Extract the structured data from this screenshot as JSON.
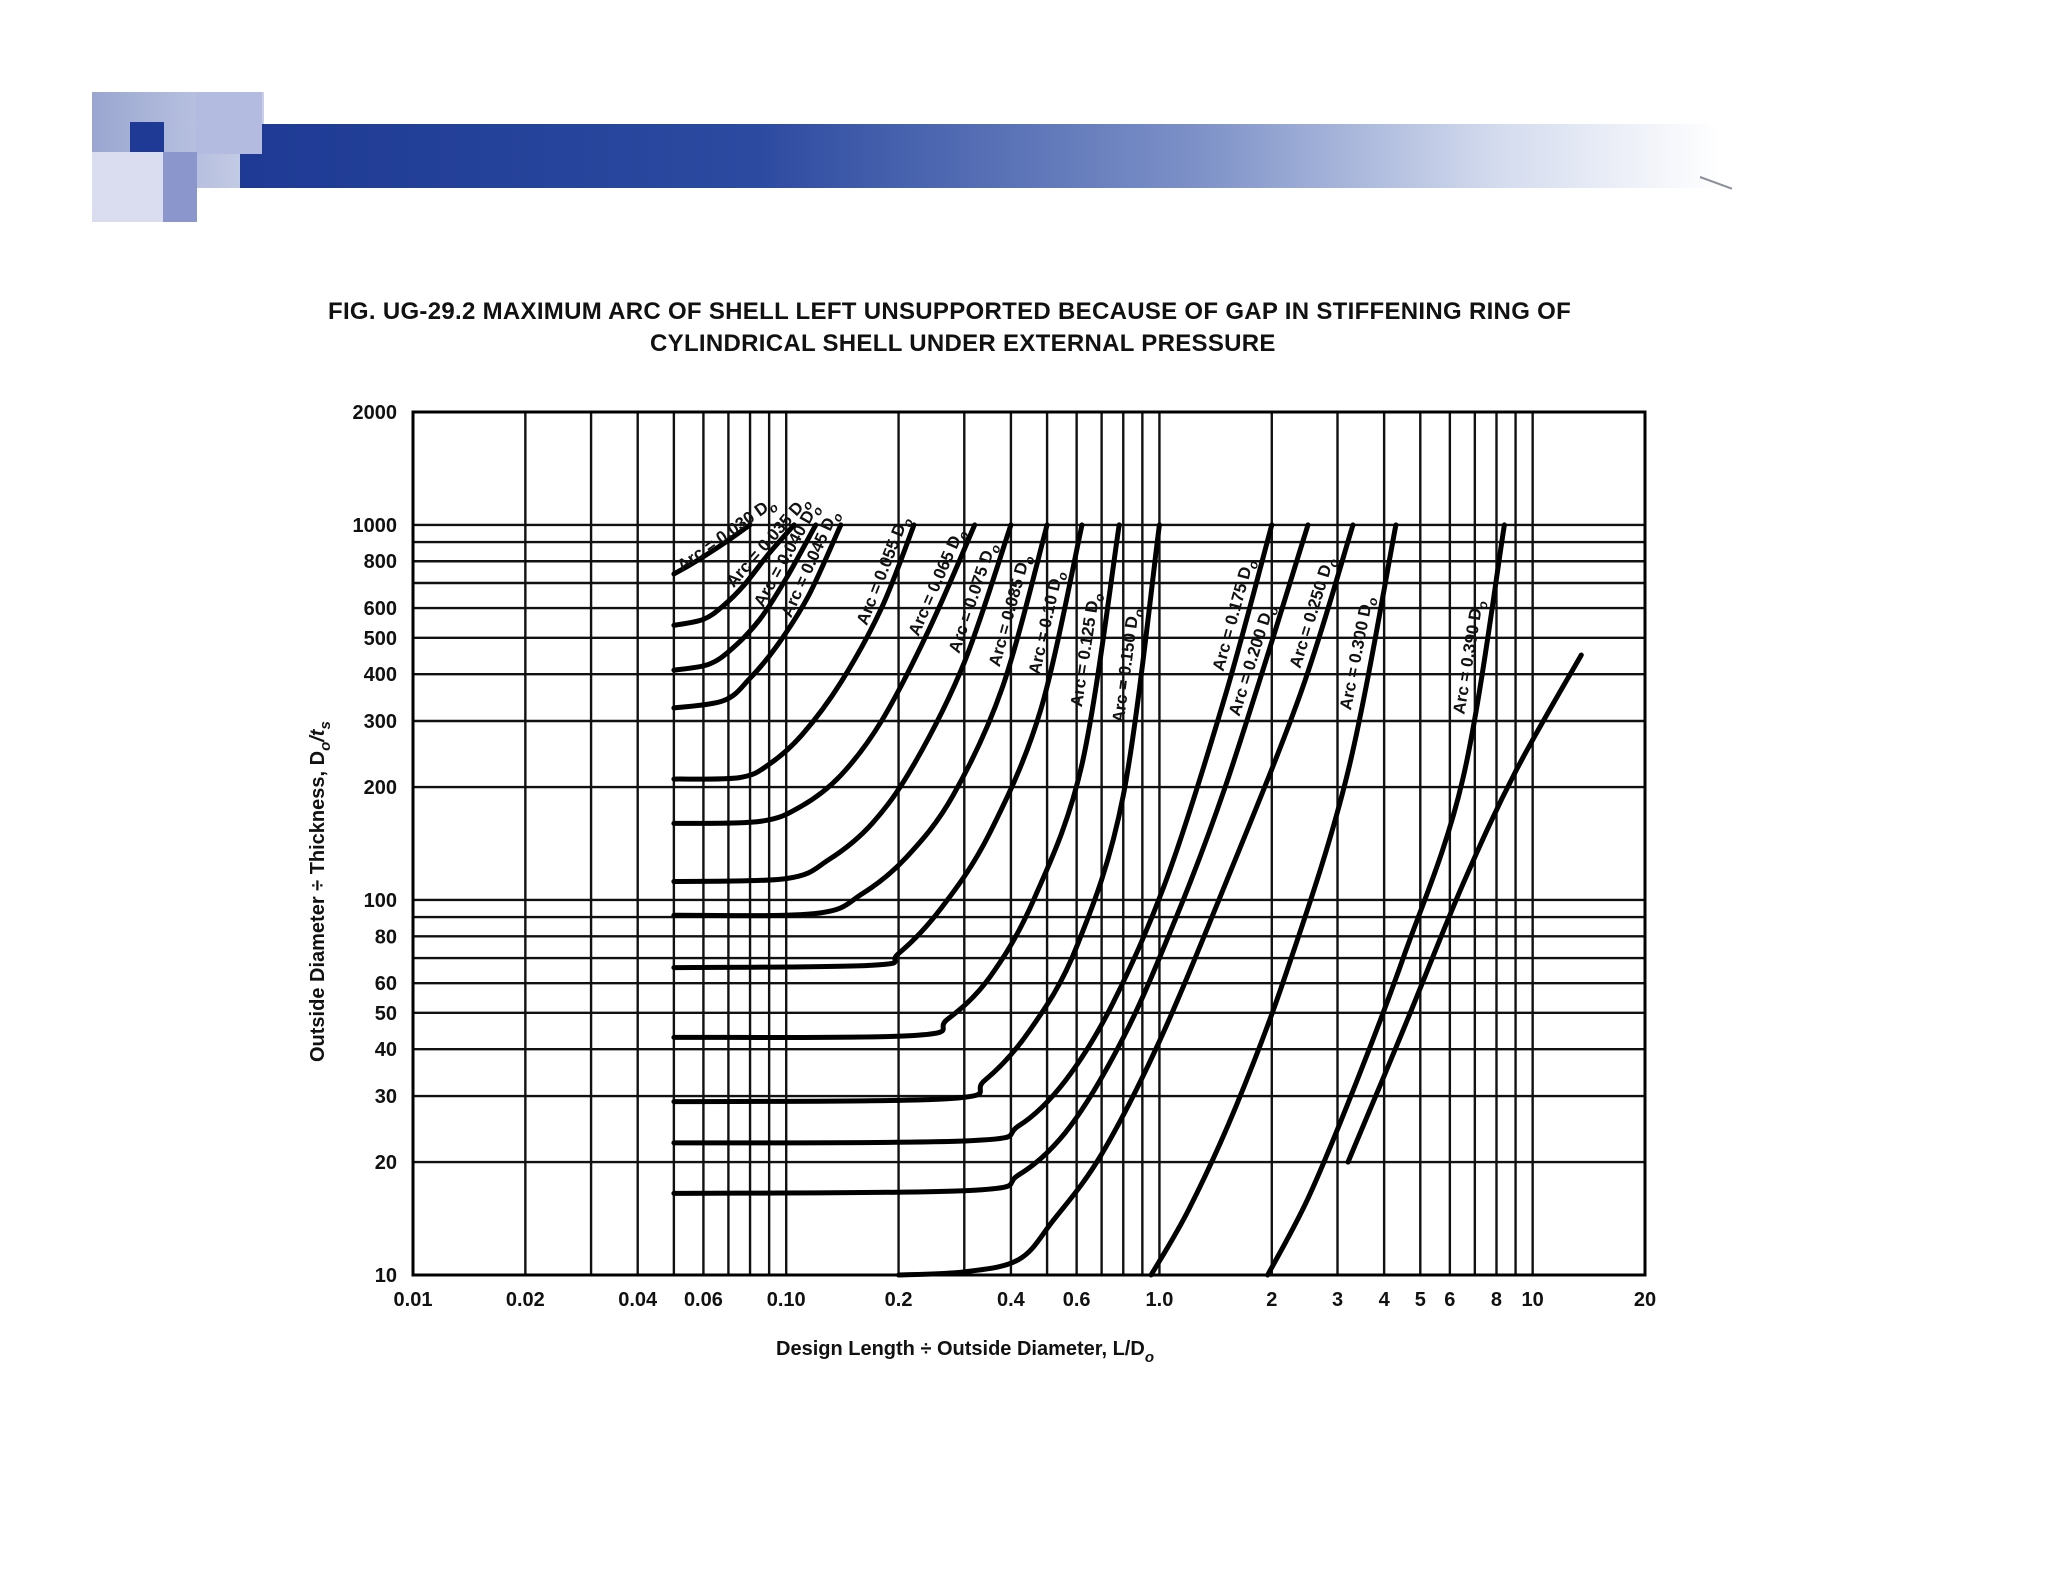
{
  "slide": {
    "figure_title_line1": "FIG. UG-29.2   MAXIMUM ARC OF SHELL LEFT UNSUPPORTED BECAUSE OF GAP IN STIFFENING RING OF",
    "figure_title_line2": "CYLINDRICAL SHELL UNDER EXTERNAL PRESSURE"
  },
  "colors": {
    "banner_dark": "#1e3a94",
    "banner_mid": "#7e92c8",
    "grid_line": "#111111",
    "curve": "#000000",
    "background": "#ffffff"
  },
  "chart_data": {
    "type": "line",
    "title": "FIG. UG-29.2   MAXIMUM ARC OF SHELL LEFT UNSUPPORTED BECAUSE OF GAP IN STIFFENING RING OF CYLINDRICAL SHELL UNDER EXTERNAL PRESSURE",
    "xlabel": "Design Length ÷ Outside Diameter, L/D",
    "xlabel_sub": "o",
    "ylabel": "Outside Diameter ÷ Thickness, D",
    "ylabel_sub1": "o",
    "ylabel_mid": "/t",
    "ylabel_sub2": "s",
    "x_scale": "log",
    "y_scale": "log",
    "xlim": [
      0.01,
      20
    ],
    "ylim": [
      10,
      2000
    ],
    "x_ticks": [
      0.01,
      0.02,
      0.04,
      0.06,
      0.1,
      0.2,
      0.4,
      0.6,
      1.0,
      2,
      3,
      4,
      5,
      6,
      8,
      10,
      20
    ],
    "x_tick_labels": [
      "0.01",
      "0.02",
      "0.04",
      "0.06",
      "0.10",
      "0.2",
      "0.4",
      "0.6",
      "1.0",
      "2",
      "3",
      "4",
      "5",
      "6",
      "8",
      "10",
      "20"
    ],
    "y_ticks": [
      10,
      20,
      30,
      40,
      50,
      60,
      80,
      100,
      200,
      300,
      400,
      500,
      600,
      800,
      1000,
      2000
    ],
    "y_tick_labels": [
      "10",
      "20",
      "30",
      "40",
      "50",
      "60",
      "80",
      "100",
      "200",
      "300",
      "400",
      "500",
      "600",
      "800",
      "1000",
      "2000"
    ],
    "grid": true,
    "series": [
      {
        "name": "Arc = 0.030 D",
        "x": [
          0.05,
          0.055,
          0.062,
          0.07,
          0.08
        ],
        "y": [
          740,
          780,
          840,
          910,
          1000
        ]
      },
      {
        "name": "Arc = 0.035 D",
        "x": [
          0.05,
          0.06,
          0.068,
          0.077,
          0.09,
          0.105
        ],
        "y": [
          540,
          560,
          610,
          690,
          840,
          1000
        ]
      },
      {
        "name": "Arc = 0.040 D",
        "x": [
          0.05,
          0.062,
          0.072,
          0.085,
          0.1,
          0.12
        ],
        "y": [
          410,
          425,
          470,
          560,
          720,
          1000
        ]
      },
      {
        "name": "Arc = 0.045 D",
        "x": [
          0.05,
          0.068,
          0.08,
          0.095,
          0.115,
          0.14
        ],
        "y": [
          325,
          340,
          390,
          480,
          650,
          1000
        ]
      },
      {
        "name": "Arc = 0.055 D",
        "x": [
          0.05,
          0.075,
          0.09,
          0.11,
          0.14,
          0.18,
          0.22
        ],
        "y": [
          210,
          212,
          230,
          275,
          380,
          600,
          1000
        ]
      },
      {
        "name": "Arc = 0.065 D",
        "x": [
          0.05,
          0.085,
          0.11,
          0.14,
          0.18,
          0.24,
          0.32
        ],
        "y": [
          160,
          162,
          178,
          215,
          300,
          520,
          1000
        ]
      },
      {
        "name": "Arc = 0.075 D",
        "x": [
          0.05,
          0.1,
          0.13,
          0.17,
          0.22,
          0.3,
          0.4
        ],
        "y": [
          112,
          114,
          128,
          160,
          230,
          430,
          1000
        ]
      },
      {
        "name": "Arc = 0.085 D",
        "x": [
          0.05,
          0.12,
          0.16,
          0.21,
          0.28,
          0.38,
          0.5
        ],
        "y": [
          91,
          92,
          104,
          130,
          190,
          370,
          1000
        ]
      },
      {
        "name": "Arc = 0.10 D",
        "x": [
          0.05,
          0.17,
          0.2,
          0.26,
          0.35,
          0.48,
          0.62
        ],
        "y": [
          66,
          67,
          72,
          95,
          150,
          320,
          1000
        ]
      },
      {
        "name": "Arc = 0.125 D",
        "x": [
          0.05,
          0.22,
          0.27,
          0.35,
          0.46,
          0.62,
          0.78
        ],
        "y": [
          43,
          43.5,
          48,
          62,
          100,
          230,
          1000
        ]
      },
      {
        "name": "Arc = 0.150 D",
        "x": [
          0.05,
          0.27,
          0.34,
          0.45,
          0.6,
          0.8,
          1.0
        ],
        "y": [
          29,
          29.5,
          33,
          45,
          75,
          190,
          1000
        ]
      },
      {
        "name": "Arc = 0.175 D",
        "x": [
          0.05,
          0.31,
          0.42,
          0.56,
          0.75,
          1.05,
          1.5,
          2.0
        ],
        "y": [
          22.5,
          22.8,
          25,
          33,
          53,
          115,
          350,
          1000
        ]
      },
      {
        "name": "Arc = 0.200 D",
        "x": [
          0.05,
          0.31,
          0.42,
          0.56,
          0.75,
          1.0,
          1.5,
          2.5
        ],
        "y": [
          16.5,
          16.8,
          18.5,
          24,
          38,
          70,
          200,
          1000
        ]
      },
      {
        "name": "Arc = 0.250 D",
        "x": [
          0.2,
          0.3,
          0.42,
          0.52,
          0.7,
          1.0,
          1.5,
          2.4,
          3.3
        ],
        "y": [
          10,
          10.2,
          11,
          14,
          21,
          42,
          110,
          360,
          1000
        ]
      },
      {
        "name": "Arc = 0.300 D",
        "x": [
          0.95,
          1.2,
          1.6,
          2.2,
          3.2,
          4.3
        ],
        "y": [
          10,
          15,
          28,
          65,
          220,
          1000
        ]
      },
      {
        "name": "Arc = 0.390 D",
        "x": [
          1.95,
          2.5,
          3.3,
          4.5,
          6.5,
          8.4
        ],
        "y": [
          10,
          16,
          31,
          70,
          210,
          1000
        ]
      },
      {
        "name": "Arc = 0.390 D",
        "x": [
          3.2,
          4.5,
          6.5,
          9.0,
          13.5
        ],
        "y": [
          20,
          45,
          110,
          220,
          450
        ]
      }
    ]
  }
}
